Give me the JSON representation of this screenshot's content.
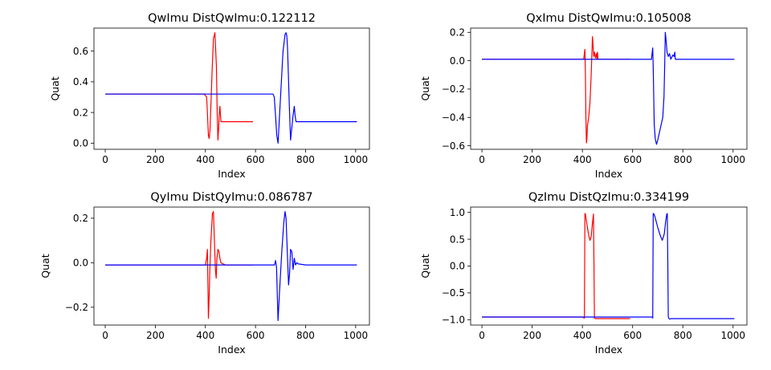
{
  "chart_data": [
    {
      "type": "line",
      "title": "QwImu DistQwImu:0.122112",
      "xlabel": "Index",
      "ylabel": "Quat",
      "xlim": [
        -45,
        1055
      ],
      "ylim": [
        -0.04,
        0.75
      ],
      "xticks": [
        "0",
        "200",
        "400",
        "600",
        "800",
        "1000"
      ],
      "xtick_values": [
        0,
        200,
        400,
        600,
        800,
        1000
      ],
      "yticks": [
        "0.0",
        "0.2",
        "0.4",
        "0.6"
      ],
      "ytick_values": [
        0.0,
        0.2,
        0.4,
        0.6
      ],
      "series": [
        {
          "color": "#ff0000",
          "x": [
            0,
            100,
            200,
            300,
            395,
            405,
            408,
            412,
            415,
            418,
            422,
            427,
            432,
            438,
            444,
            447,
            450,
            453,
            455,
            458,
            462,
            466,
            470,
            500,
            550,
            590
          ],
          "y": [
            0.32,
            0.32,
            0.32,
            0.32,
            0.32,
            0.3,
            0.2,
            0.05,
            0.03,
            0.08,
            0.25,
            0.48,
            0.68,
            0.72,
            0.5,
            0.2,
            0.02,
            0.1,
            0.18,
            0.24,
            0.14,
            0.14,
            0.14,
            0.14,
            0.14,
            0.14
          ]
        },
        {
          "color": "#0000ff",
          "x": [
            0,
            200,
            400,
            600,
            670,
            675,
            680,
            685,
            690,
            700,
            710,
            718,
            722,
            725,
            728,
            735,
            740,
            745,
            750,
            755,
            758,
            762,
            770,
            800,
            900,
            1005
          ],
          "y": [
            0.32,
            0.32,
            0.32,
            0.32,
            0.32,
            0.3,
            0.18,
            0.05,
            0.0,
            0.3,
            0.6,
            0.71,
            0.72,
            0.7,
            0.62,
            0.25,
            0.02,
            0.1,
            0.18,
            0.24,
            0.18,
            0.14,
            0.14,
            0.14,
            0.14,
            0.14
          ]
        }
      ]
    },
    {
      "type": "line",
      "title": "QxImu DistQwImu:0.105008",
      "xlabel": "Index",
      "ylabel": "Quat",
      "xlim": [
        -45,
        1055
      ],
      "ylim": [
        -0.625,
        0.23
      ],
      "xticks": [
        "0",
        "200",
        "400",
        "600",
        "800",
        "1000"
      ],
      "xtick_values": [
        0,
        200,
        400,
        600,
        800,
        1000
      ],
      "yticks": [
        "0.2",
        "0.0",
        "−0.2",
        "−0.4",
        "−0.6"
      ],
      "ytick_values": [
        0.2,
        0.0,
        -0.2,
        -0.4,
        -0.6
      ],
      "series": [
        {
          "color": "#ff0000",
          "x": [
            0,
            100,
            200,
            300,
            405,
            410,
            412,
            414,
            416,
            418,
            420,
            425,
            430,
            435,
            440,
            442,
            445,
            448,
            452,
            456,
            458,
            460,
            462,
            470,
            500,
            550,
            590
          ],
          "y": [
            0.01,
            0.01,
            0.01,
            0.01,
            0.01,
            0.08,
            -0.1,
            -0.4,
            -0.58,
            -0.55,
            -0.46,
            -0.4,
            -0.3,
            -0.1,
            0.17,
            0.12,
            0.03,
            0.06,
            0.02,
            0.05,
            0.01,
            0.06,
            0.01,
            0.01,
            0.01,
            0.01,
            0.01
          ]
        },
        {
          "color": "#0000ff",
          "x": [
            0,
            200,
            400,
            600,
            675,
            680,
            682,
            684,
            686,
            690,
            695,
            700,
            710,
            720,
            725,
            728,
            730,
            733,
            737,
            742,
            747,
            752,
            760,
            765,
            768,
            770,
            800,
            900,
            1005
          ],
          "y": [
            0.01,
            0.01,
            0.01,
            0.01,
            0.01,
            0.09,
            -0.05,
            -0.25,
            -0.45,
            -0.55,
            -0.59,
            -0.56,
            -0.48,
            -0.4,
            -0.25,
            0.0,
            0.2,
            0.15,
            0.06,
            0.03,
            0.05,
            0.01,
            0.04,
            0.03,
            0.06,
            0.01,
            0.01,
            0.01,
            0.01
          ]
        }
      ]
    },
    {
      "type": "line",
      "title": "QyImu DistQyImu:0.086787",
      "xlabel": "Index",
      "ylabel": "Quat",
      "xlim": [
        -45,
        1055
      ],
      "ylim": [
        -0.28,
        0.25
      ],
      "xticks": [
        "0",
        "200",
        "400",
        "600",
        "800",
        "1000"
      ],
      "xtick_values": [
        0,
        200,
        400,
        600,
        800,
        1000
      ],
      "yticks": [
        "0.2",
        "0.0",
        "−0.2"
      ],
      "ytick_values": [
        0.2,
        0.0,
        -0.2
      ],
      "series": [
        {
          "color": "#ff0000",
          "x": [
            0,
            100,
            200,
            300,
            400,
            405,
            408,
            410,
            412,
            415,
            418,
            422,
            428,
            432,
            436,
            440,
            443,
            446,
            450,
            454,
            458,
            462,
            470,
            480,
            520,
            590
          ],
          "y": [
            -0.01,
            -0.01,
            -0.01,
            -0.01,
            -0.01,
            0.02,
            0.06,
            -0.1,
            -0.25,
            -0.15,
            -0.02,
            0.1,
            0.22,
            0.23,
            0.1,
            -0.03,
            -0.07,
            0.02,
            0.06,
            0.05,
            0.02,
            0.0,
            -0.005,
            -0.01,
            -0.01,
            -0.01
          ]
        },
        {
          "color": "#0000ff",
          "x": [
            0,
            200,
            400,
            600,
            670,
            676,
            680,
            684,
            690,
            695,
            705,
            713,
            718,
            722,
            728,
            732,
            736,
            740,
            745,
            750,
            755,
            760,
            765,
            770,
            800,
            900,
            1005
          ],
          "y": [
            -0.01,
            -0.01,
            -0.01,
            -0.01,
            -0.01,
            -0.01,
            0.01,
            -0.02,
            -0.26,
            -0.15,
            0.05,
            0.18,
            0.23,
            0.2,
            0.02,
            -0.1,
            -0.05,
            0.06,
            0.05,
            -0.03,
            0.02,
            -0.01,
            0.0,
            -0.005,
            -0.01,
            -0.01,
            -0.01
          ]
        }
      ]
    },
    {
      "type": "line",
      "title": "QzImu DistQzImu:0.334199",
      "xlabel": "Index",
      "ylabel": "Quat",
      "xlim": [
        -45,
        1055
      ],
      "ylim": [
        -1.1,
        1.1
      ],
      "xticks": [
        "0",
        "200",
        "400",
        "600",
        "800",
        "1000"
      ],
      "xtick_values": [
        0,
        200,
        400,
        600,
        800,
        1000
      ],
      "yticks": [
        "1.0",
        "0.5",
        "0.0",
        "−0.5",
        "−1.0"
      ],
      "ytick_values": [
        1.0,
        0.5,
        0.0,
        -0.5,
        -1.0
      ],
      "series": [
        {
          "color": "#ff0000",
          "x": [
            0,
            100,
            200,
            300,
            400,
            408,
            410,
            412,
            415,
            420,
            425,
            430,
            435,
            440,
            444,
            446,
            448,
            452,
            460,
            500,
            550,
            590
          ],
          "y": [
            -0.95,
            -0.95,
            -0.95,
            -0.95,
            -0.95,
            -0.97,
            0.98,
            0.97,
            0.88,
            0.72,
            0.58,
            0.48,
            0.55,
            0.8,
            0.97,
            0.1,
            -0.97,
            -0.98,
            -0.98,
            -0.98,
            -0.98,
            -0.98
          ]
        },
        {
          "color": "#0000ff",
          "x": [
            0,
            200,
            400,
            600,
            678,
            680,
            682,
            685,
            690,
            700,
            710,
            718,
            726,
            732,
            736,
            738,
            740,
            742,
            745,
            748,
            752,
            760,
            800,
            900,
            1005
          ],
          "y": [
            -0.95,
            -0.95,
            -0.95,
            -0.95,
            -0.95,
            -0.97,
            0.98,
            0.97,
            0.9,
            0.72,
            0.57,
            0.48,
            0.6,
            0.85,
            0.97,
            0.98,
            0.1,
            -0.95,
            -0.98,
            -0.99,
            -0.98,
            -0.98,
            -0.98,
            -0.98,
            -0.98
          ]
        }
      ]
    }
  ]
}
